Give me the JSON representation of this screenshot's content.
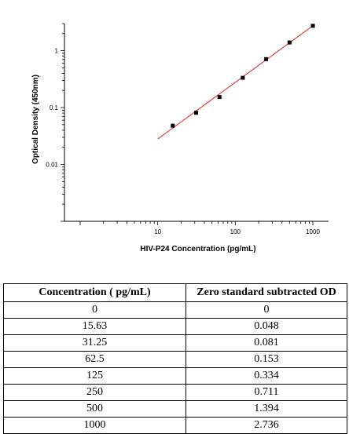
{
  "chart_data": {
    "type": "scatter",
    "xlabel": "HIV-P24 Concentration (pg/mL)",
    "ylabel": "Optical Density (450nm)",
    "x_scale": "log",
    "y_scale": "log",
    "xlim": [
      1,
      1000
    ],
    "ylim": [
      0.001,
      3
    ],
    "x_tick_labels": [
      "10",
      "100",
      "1000"
    ],
    "y_tick_labels": [
      "0.01",
      "0.1",
      "1"
    ],
    "grid": false,
    "points": [
      {
        "x": 15.63,
        "y": 0.048
      },
      {
        "x": 31.25,
        "y": 0.081
      },
      {
        "x": 62.5,
        "y": 0.153
      },
      {
        "x": 125,
        "y": 0.334
      },
      {
        "x": 250,
        "y": 0.711
      },
      {
        "x": 500,
        "y": 1.394
      },
      {
        "x": 1000,
        "y": 2.736
      }
    ],
    "fit_line": {
      "x": [
        10,
        1000
      ],
      "y": [
        0.028,
        2.74
      ],
      "color": "#e02020"
    },
    "marker_color": "#000000"
  },
  "table": {
    "headers": [
      "Concentration ( pg/mL)",
      "Zero standard subtracted OD"
    ],
    "rows": [
      [
        "0",
        "0"
      ],
      [
        "15.63",
        "0.048"
      ],
      [
        "31.25",
        "0.081"
      ],
      [
        "62.5",
        "0.153"
      ],
      [
        "125",
        "0.334"
      ],
      [
        "250",
        "0.711"
      ],
      [
        "500",
        "1.394"
      ],
      [
        "1000",
        "2.736"
      ]
    ]
  }
}
